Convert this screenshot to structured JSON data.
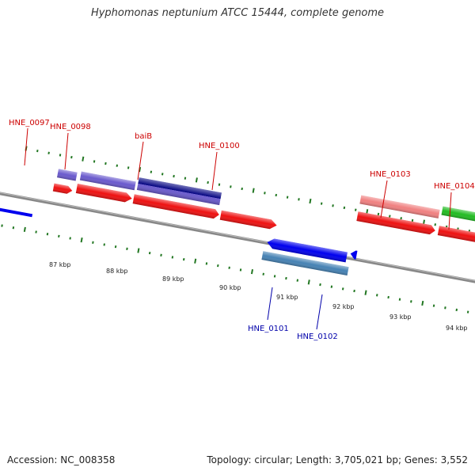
{
  "title": "Hyphomonas neptunium ATCC 15444, complete genome",
  "footer": {
    "accession": "Accession: NC_008358",
    "stats": "Topology: circular; Length: 3,705,021 bp; Genes: 3,552"
  },
  "colors": {
    "forward_label": "#cc0000",
    "reverse_label": "#0000aa",
    "tick": "#227722",
    "backbone": "#888888"
  },
  "scale_labels": [
    "87 kbp",
    "88 kbp",
    "89 kbp",
    "90 kbp",
    "91 kbp",
    "92 kbp",
    "93 kbp",
    "94 kbp"
  ],
  "genes_above": [
    {
      "name": "HNE_0097",
      "color": "#6a5acd"
    },
    {
      "name": "HNE_0098",
      "color": "#6a5acd"
    },
    {
      "name": "baiB",
      "color": "#000080"
    },
    {
      "name": "HNE_0100",
      "color": ""
    },
    {
      "name": "HNE_0103",
      "color": "#f08080"
    },
    {
      "name": "HNE_0104",
      "color": "#22bb22"
    }
  ],
  "genes_below": [
    {
      "name": "HNE_0101",
      "color": "#0000ee"
    },
    {
      "name": "HNE_0102",
      "color": "#4682b4"
    }
  ]
}
